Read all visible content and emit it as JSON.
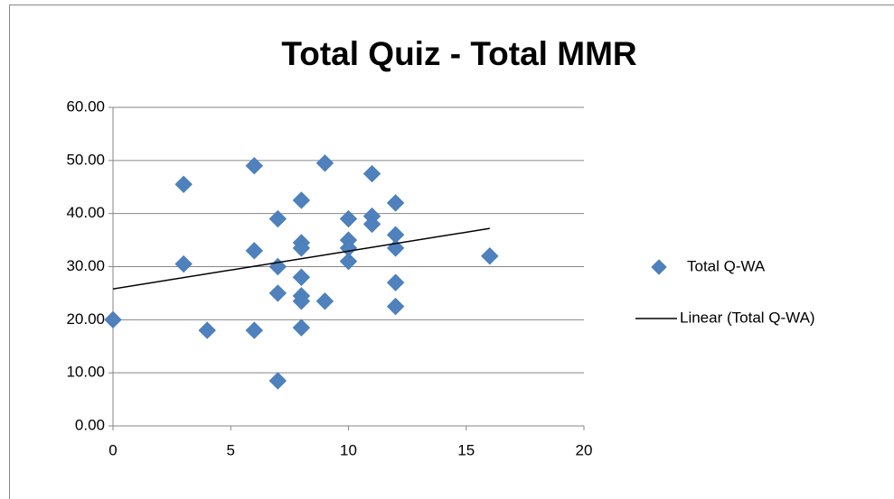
{
  "chart_data": {
    "type": "scatter",
    "title": "Total Quiz - Total MMR",
    "xlim": [
      0,
      20
    ],
    "xticks": [
      0,
      5,
      10,
      15,
      20
    ],
    "ylim": [
      0,
      60
    ],
    "yticks": [
      {
        "value": 0,
        "label": "0.00"
      },
      {
        "value": 10,
        "label": "10.00"
      },
      {
        "value": 20,
        "label": "20.00"
      },
      {
        "value": 30,
        "label": "30.00"
      },
      {
        "value": 40,
        "label": "40.00"
      },
      {
        "value": 50,
        "label": "50.00"
      },
      {
        "value": 60,
        "label": "60.00"
      }
    ],
    "grid": true,
    "legend": "right",
    "series": [
      {
        "name": "Total Q-WA",
        "color": "#4f81bd",
        "x": [
          0,
          3,
          3,
          4,
          6,
          6,
          6,
          7,
          7,
          7,
          7,
          8,
          8,
          8,
          8,
          8,
          8,
          8,
          9,
          9,
          10,
          10,
          10,
          10,
          11,
          11,
          11,
          12,
          12,
          12,
          12,
          12,
          16
        ],
        "values": [
          20,
          45.5,
          30.5,
          18,
          49,
          33,
          18,
          39,
          30,
          25,
          8.5,
          42.5,
          34.5,
          33.5,
          28,
          24.5,
          23.5,
          18.5,
          49.5,
          23.5,
          39,
          35,
          33.5,
          31,
          47.5,
          39.5,
          38,
          42,
          36,
          33.5,
          27,
          22.5,
          32
        ]
      },
      {
        "name": "Linear (Total Q-WA)",
        "color": "#000000",
        "trendline": true,
        "x": [
          0,
          16
        ],
        "values": [
          25.8,
          37.2
        ]
      }
    ]
  }
}
